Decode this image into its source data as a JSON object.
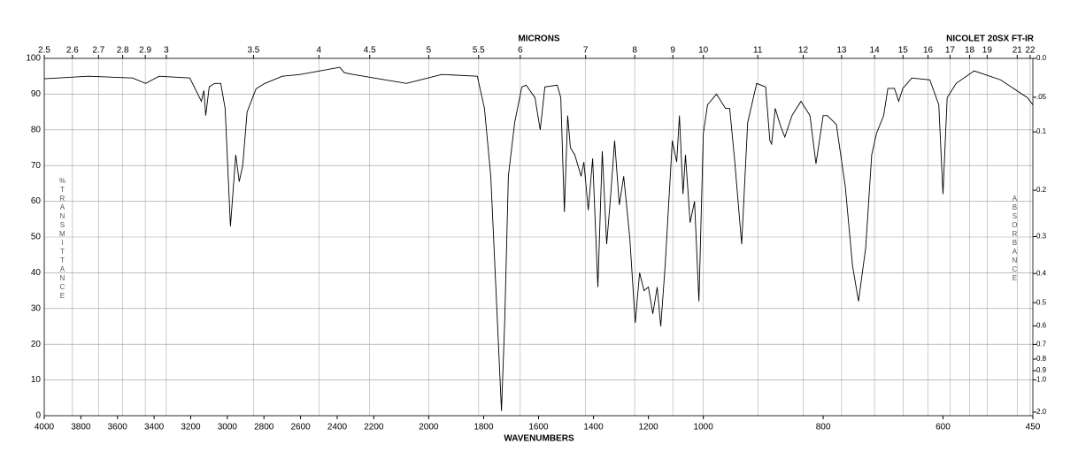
{
  "chart_data": {
    "type": "line",
    "title": "NICOLET 20SX FT-IR",
    "x_label": "WAVENUMBERS",
    "x2_label": "MICRONS",
    "y_label": "%TRANSMITTANCE",
    "y2_label": "ABSORBANCE",
    "xlim": [
      4000,
      450
    ],
    "x_scale_breaks": [
      2200,
      1000
    ],
    "xticks": [
      4000,
      3800,
      3600,
      3400,
      3200,
      3000,
      2800,
      2600,
      2400,
      2200,
      2000,
      1800,
      1600,
      1400,
      1200,
      1000,
      800,
      600,
      450
    ],
    "x2ticks": [
      2.5,
      2.6,
      2.7,
      2.8,
      2.9,
      3,
      3.5,
      4,
      4.5,
      5,
      5.5,
      6,
      7,
      8,
      9,
      10,
      11,
      12,
      13,
      14,
      15,
      16,
      17,
      18,
      19,
      21,
      22
    ],
    "ylim": [
      0,
      100
    ],
    "yticks": [
      0,
      10,
      20,
      30,
      40,
      50,
      60,
      70,
      80,
      90,
      100
    ],
    "y2ticks": [
      {
        "value": 0,
        "label": "0.0"
      },
      {
        "value": 0.05,
        "label": ".05"
      },
      0.1,
      0.2,
      0.3,
      0.4,
      0.5,
      0.6,
      0.7,
      0.8,
      0.9,
      {
        "value": 1,
        "label": "1.0"
      },
      {
        "value": 2,
        "label": "2.0"
      }
    ],
    "grid": true,
    "series": [
      {
        "color": "#000000",
        "x": [
          4000,
          3759,
          3518,
          3446,
          3373,
          3205,
          3142,
          3128,
          3118,
          3099,
          3070,
          3036,
          3012,
          2983,
          2954,
          2935,
          2916,
          2892,
          2843,
          2795,
          2699,
          2602,
          2386,
          2361,
          2313,
          2081,
          1952,
          1823,
          1797,
          1774,
          1752,
          1735,
          1723,
          1710,
          1687,
          1661,
          1645,
          1613,
          1594,
          1577,
          1532,
          1519,
          1506,
          1494,
          1484,
          1468,
          1445,
          1435,
          1419,
          1403,
          1384,
          1368,
          1352,
          1339,
          1323,
          1306,
          1290,
          1268,
          1248,
          1232,
          1216,
          1200,
          1184,
          1168,
          1155,
          1139,
          1113,
          1097,
          1087,
          1074,
          1065,
          1048,
          1032,
          1016,
          1000,
          993,
          978,
          963,
          956,
          948,
          936,
          926,
          911,
          896,
          889,
          886,
          880,
          871,
          864,
          852,
          837,
          822,
          812,
          800,
          793,
          778,
          763,
          751,
          741,
          729,
          719,
          711,
          699,
          692,
          681,
          674,
          667,
          652,
          622,
          607,
          600,
          593,
          578,
          548,
          504,
          459,
          450
        ],
        "values": [
          94.3,
          95,
          94.5,
          93,
          95,
          94.5,
          88,
          91,
          84,
          92,
          93,
          93,
          86,
          53,
          73,
          65.5,
          70,
          85,
          91.5,
          93,
          95,
          95.5,
          97.5,
          96,
          95.5,
          93,
          95.5,
          95,
          86,
          67,
          30,
          1.3,
          27,
          67,
          82,
          92,
          92.5,
          89,
          80,
          92,
          92.5,
          89,
          57,
          84,
          75,
          73,
          67,
          71,
          57.5,
          72,
          36,
          74,
          48,
          60,
          77,
          59,
          67,
          50,
          26,
          40,
          35,
          36,
          28.5,
          36,
          25,
          42,
          77,
          71,
          84,
          62,
          73,
          54,
          60,
          32,
          79,
          87,
          90,
          86,
          86,
          72,
          48,
          82,
          93,
          92,
          77,
          76,
          86,
          81,
          78,
          84,
          88,
          84,
          70.5,
          84,
          84,
          81.5,
          64,
          42,
          32,
          47,
          73,
          79,
          84,
          91.6,
          91.6,
          88,
          91.6,
          94.5,
          94,
          87,
          62,
          89,
          93,
          96.5,
          94,
          89,
          87
        ]
      }
    ]
  }
}
